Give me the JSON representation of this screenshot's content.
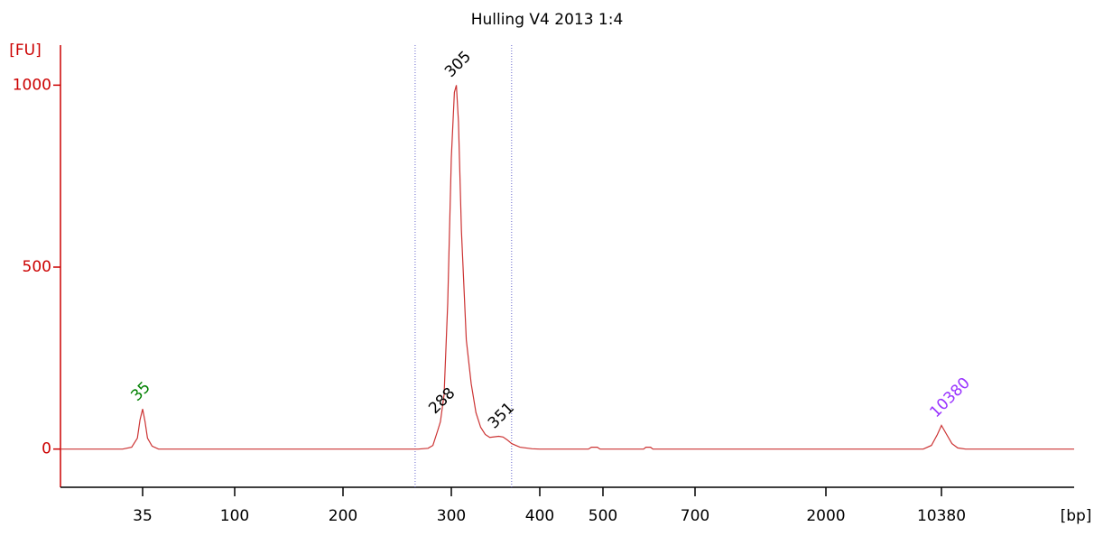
{
  "chart_data": {
    "type": "line",
    "title": "Hulling V4 2013 1:4",
    "y_label": "[FU]",
    "x_label": "[bp]",
    "xscale": "log",
    "xlim": [
      14,
      65000
    ],
    "xticks": [
      35,
      100,
      200,
      300,
      400,
      500,
      700,
      2000,
      10380
    ],
    "ylim": [
      -105,
      1110
    ],
    "yticks": [
      0,
      500,
      1000
    ],
    "axis_color": "#cc0000",
    "region": [
      262,
      365
    ],
    "region_color": "#6666cc",
    "series": [
      {
        "name": "Hulling V4 2013 1:4",
        "color": "#cc3333",
        "x": [
          14,
          28,
          31,
          33,
          34,
          35,
          36,
          37,
          39,
          42,
          265,
          275,
          280,
          285,
          288,
          292,
          296,
          300,
          303,
          305,
          307,
          310,
          315,
          320,
          325,
          330,
          335,
          340,
          350,
          355,
          360,
          365,
          375,
          390,
          400,
          475,
          480,
          490,
          495,
          580,
          585,
          595,
          600,
          610,
          8000,
          9000,
          9800,
          10380,
          11000,
          12000,
          13000,
          14500,
          65000
        ],
        "values": [
          0,
          0,
          5,
          30,
          80,
          110,
          75,
          30,
          8,
          0,
          0,
          2,
          10,
          50,
          75,
          150,
          400,
          800,
          980,
          1000,
          900,
          600,
          300,
          180,
          100,
          60,
          40,
          32,
          35,
          33,
          25,
          15,
          5,
          1,
          0,
          0,
          5,
          5,
          0,
          0,
          5,
          5,
          0,
          0,
          0,
          10,
          40,
          65,
          45,
          15,
          3,
          0,
          0
        ]
      }
    ],
    "peaks": [
      {
        "x": 35,
        "color": "#008000"
      },
      {
        "x": 288,
        "color": "#000000"
      },
      {
        "x": 305,
        "color": "#000000"
      },
      {
        "x": 351,
        "color": "#000000"
      },
      {
        "x": 10380,
        "color": "#9933ff"
      }
    ]
  }
}
